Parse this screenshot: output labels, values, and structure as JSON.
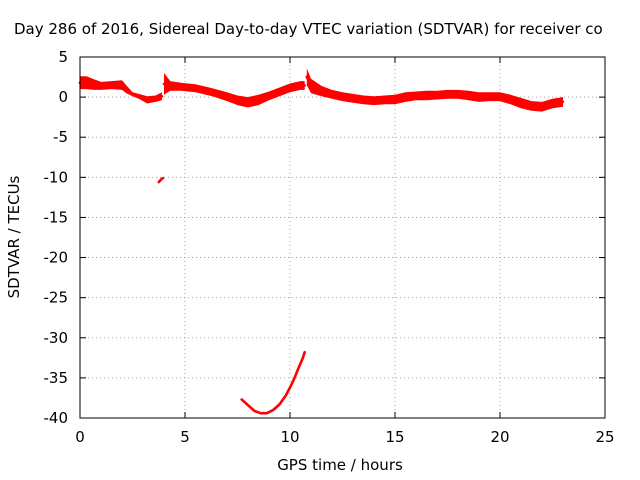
{
  "chart_data": {
    "type": "line",
    "title": "Day 286 of 2016, Sidereal Day-to-day VTEC variation (SDTVAR) for receiver co",
    "xlabel": "GPS time / hours",
    "ylabel": "SDTVAR / TECUs",
    "xlim": [
      0,
      25
    ],
    "ylim": [
      -40,
      5
    ],
    "xticks": [
      "0",
      "5",
      "10",
      "15",
      "20",
      "25"
    ],
    "yticks": [
      "5",
      "0",
      "-5",
      "-10",
      "-15",
      "-20",
      "-25",
      "-30",
      "-35",
      "-40"
    ],
    "grid": true,
    "legend": "none",
    "colors": {
      "series": "#ff0000",
      "axis": "#000000",
      "grid": "#a0a0a0"
    },
    "series": [
      {
        "band": [
          [
            0.0,
            1.0,
            2.6
          ],
          [
            0.3,
            1.0,
            2.6
          ],
          [
            0.7,
            0.9,
            2.2
          ],
          [
            1.0,
            0.9,
            1.9
          ],
          [
            1.5,
            1.0,
            2.0
          ],
          [
            2.0,
            0.9,
            2.1
          ],
          [
            2.2,
            0.5,
            1.5
          ],
          [
            2.5,
            0.1,
            0.6
          ],
          [
            2.8,
            -0.2,
            0.4
          ],
          [
            3.2,
            -0.8,
            0.1
          ],
          [
            3.6,
            -0.6,
            0.2
          ],
          [
            3.9,
            -0.4,
            0.6
          ]
        ]
      },
      {
        "band": [
          [
            4.0,
            0.3,
            3.0
          ],
          [
            4.3,
            0.8,
            2.0
          ],
          [
            4.8,
            0.8,
            1.8
          ],
          [
            5.5,
            0.6,
            1.6
          ],
          [
            6.3,
            0.1,
            1.1
          ],
          [
            7.0,
            -0.5,
            0.6
          ],
          [
            7.5,
            -1.0,
            0.2
          ],
          [
            8.0,
            -1.3,
            0.0
          ],
          [
            8.5,
            -1.0,
            0.3
          ],
          [
            9.0,
            -0.4,
            0.7
          ],
          [
            9.5,
            0.1,
            1.2
          ],
          [
            10.0,
            0.6,
            1.7
          ],
          [
            10.5,
            0.9,
            2.0
          ],
          [
            10.7,
            0.9,
            2.0
          ]
        ]
      },
      {
        "band": [
          [
            10.8,
            1.5,
            3.6
          ],
          [
            11.0,
            0.5,
            2.3
          ],
          [
            11.5,
            0.1,
            1.4
          ],
          [
            12.0,
            -0.2,
            0.9
          ],
          [
            12.5,
            -0.5,
            0.6
          ],
          [
            13.0,
            -0.7,
            0.4
          ],
          [
            13.5,
            -0.9,
            0.2
          ],
          [
            14.0,
            -1.0,
            0.1
          ],
          [
            14.5,
            -0.9,
            0.2
          ],
          [
            15.0,
            -0.9,
            0.3
          ],
          [
            15.5,
            -0.6,
            0.6
          ],
          [
            16.0,
            -0.4,
            0.7
          ],
          [
            16.5,
            -0.4,
            0.8
          ],
          [
            17.0,
            -0.3,
            0.8
          ],
          [
            17.5,
            -0.2,
            0.9
          ],
          [
            18.0,
            -0.2,
            0.9
          ],
          [
            18.5,
            -0.4,
            0.8
          ],
          [
            19.0,
            -0.6,
            0.6
          ],
          [
            19.5,
            -0.5,
            0.6
          ],
          [
            20.0,
            -0.5,
            0.6
          ],
          [
            20.5,
            -0.9,
            0.3
          ],
          [
            21.0,
            -1.4,
            -0.1
          ],
          [
            21.5,
            -1.7,
            -0.5
          ],
          [
            22.0,
            -1.8,
            -0.6
          ],
          [
            22.5,
            -1.4,
            -0.2
          ],
          [
            23.0,
            -1.2,
            0.0
          ]
        ]
      },
      {
        "x": [
          3.75,
          3.85,
          3.95
        ],
        "y": [
          -10.6,
          -10.3,
          -10.1
        ]
      },
      {
        "x": [
          7.7,
          8.0,
          8.3,
          8.6,
          8.9,
          9.2,
          9.5,
          9.8,
          10.0,
          10.2,
          10.4,
          10.6,
          10.7
        ],
        "y": [
          -37.7,
          -38.4,
          -39.1,
          -39.4,
          -39.4,
          -39.0,
          -38.3,
          -37.2,
          -36.2,
          -35.1,
          -33.8,
          -32.6,
          -31.8
        ]
      }
    ]
  }
}
